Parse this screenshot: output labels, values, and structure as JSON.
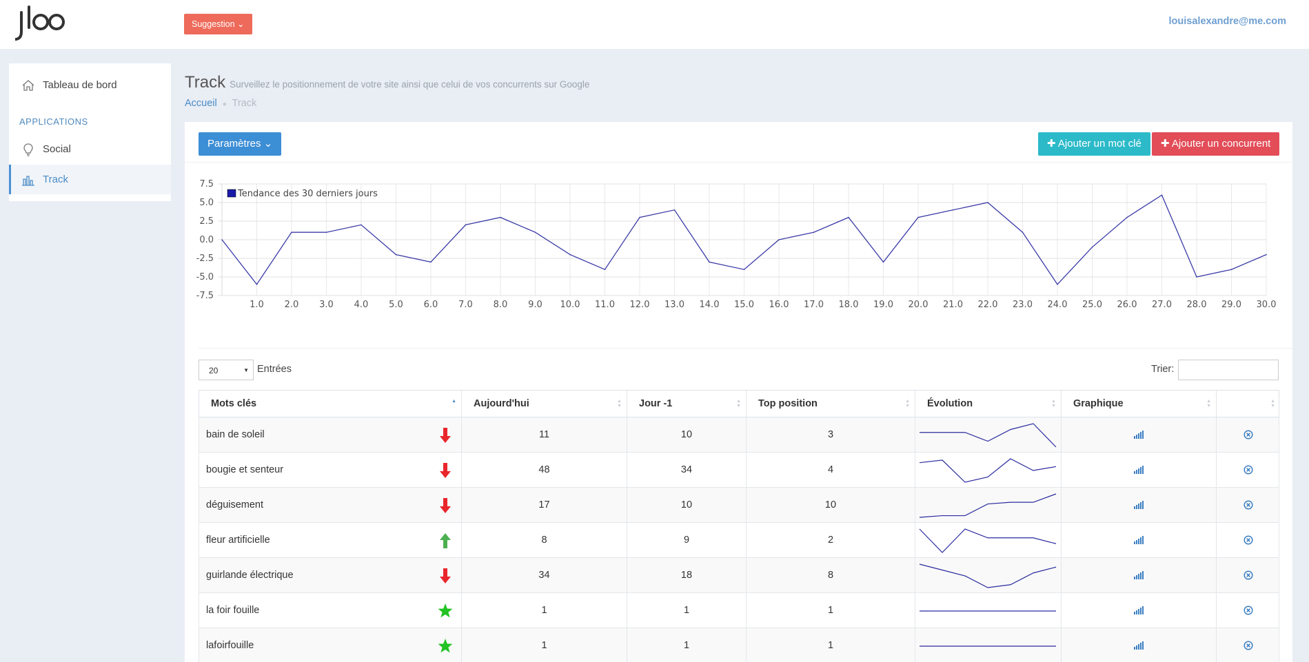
{
  "header": {
    "logo_text": "jloo",
    "suggestion_label": "Suggestion ⌄",
    "user_email": "louisalexandre@me.com"
  },
  "sidebar": {
    "dashboard_label": "Tableau de bord",
    "section_label": "APPLICATIONS",
    "items": [
      {
        "label": "Social"
      },
      {
        "label": "Track"
      }
    ]
  },
  "page": {
    "title": "Track",
    "subtitle": "Surveillez le positionnement de votre site ainsi que celui de vos concurrents sur Google",
    "breadcrumb_home": "Accueil",
    "breadcrumb_sep": "●",
    "breadcrumb_current": "Track"
  },
  "toolbar": {
    "params_label": "Paramètres ⌄",
    "add_keyword_label": "✚ Ajouter un mot clé",
    "add_competitor_label": "✚ Ajouter un concurrent"
  },
  "chart_data": {
    "type": "line",
    "legend": "Tendance des 30 derniers jours",
    "legend_placement": "top-left",
    "x": [
      0,
      1,
      2,
      3,
      4,
      5,
      6,
      7,
      8,
      9,
      10,
      11,
      12,
      13,
      14,
      15,
      16,
      17,
      18,
      19,
      20,
      21,
      22,
      23,
      24,
      25,
      26,
      27,
      28,
      29,
      30
    ],
    "x_tick_labels": [
      "1.0",
      "2.0",
      "3.0",
      "4.0",
      "5.0",
      "6.0",
      "7.0",
      "8.0",
      "9.0",
      "10.0",
      "11.0",
      "12.0",
      "13.0",
      "14.0",
      "15.0",
      "16.0",
      "17.0",
      "18.0",
      "19.0",
      "20.0",
      "21.0",
      "22.0",
      "23.0",
      "24.0",
      "25.0",
      "26.0",
      "27.0",
      "28.0",
      "29.0",
      "30.0"
    ],
    "series": [
      {
        "name": "Tendance des 30 derniers jours",
        "values": [
          0,
          -6,
          1,
          1,
          2,
          -2,
          -3,
          2,
          3,
          1,
          -2,
          -4,
          3,
          4,
          -3,
          -4,
          0,
          1,
          3,
          -3,
          3,
          4,
          5,
          1,
          -6,
          -1,
          3,
          6,
          -5,
          -4,
          -2
        ]
      }
    ],
    "y_tick_labels": [
      "7.5",
      "5.0",
      "2.5",
      "0.0",
      "-2.5",
      "-5.0",
      "-7.5"
    ],
    "ylim": [
      -7.5,
      7.5
    ],
    "xlim": [
      0,
      30
    ],
    "grid": true,
    "color": "#3b3ba8"
  },
  "table_controls": {
    "page_length": "20",
    "entries_label": "Entrées",
    "search_label": "Trier:"
  },
  "table": {
    "columns": [
      "Mots clés",
      "Aujourd'hui",
      "Jour -1",
      "Top position",
      "Évolution",
      "Graphique",
      ""
    ],
    "rows": [
      {
        "keyword": "bain de soleil",
        "trend": "down-arrow-icon",
        "today": "11",
        "yesterday": "10",
        "top": "3",
        "spark": [
          11,
          11,
          11,
          14,
          10,
          8,
          16
        ]
      },
      {
        "keyword": "bougie et senteur",
        "trend": "down-arrow-icon",
        "today": "48",
        "yesterday": "34",
        "top": "4",
        "spark": [
          40,
          38,
          55,
          51,
          37,
          46,
          43
        ]
      },
      {
        "keyword": "déguisement",
        "trend": "down-arrow-icon",
        "today": "17",
        "yesterday": "10",
        "top": "10",
        "spark": [
          30,
          29,
          29,
          22,
          21,
          21,
          16
        ]
      },
      {
        "keyword": "fleur artificielle",
        "trend": "up-arrow-icon",
        "today": "8",
        "yesterday": "9",
        "top": "2",
        "spark": [
          6,
          14,
          6,
          9,
          9,
          9,
          11
        ]
      },
      {
        "keyword": "guirlande électrique",
        "trend": "down-arrow-icon",
        "today": "34",
        "yesterday": "18",
        "top": "8",
        "spark": [
          18,
          22,
          26,
          34,
          32,
          24,
          20
        ]
      },
      {
        "keyword": "la foir fouille",
        "trend": "star-icon",
        "today": "1",
        "yesterday": "1",
        "top": "1",
        "spark": [
          1,
          1,
          1,
          1,
          1,
          1,
          1
        ]
      },
      {
        "keyword": "lafoirfouille",
        "trend": "star-icon",
        "today": "1",
        "yesterday": "1",
        "top": "1",
        "spark": [
          1,
          1,
          1,
          1,
          1,
          1,
          1
        ]
      }
    ]
  },
  "colors": {
    "accent": "#3c8ed5",
    "suggestion": "#ee6a5a",
    "add_keyword": "#2cbac9",
    "add_competitor": "#e24d58",
    "arrow_down": "#e8262c",
    "arrow_up": "#4caf50",
    "star": "#22c322"
  }
}
